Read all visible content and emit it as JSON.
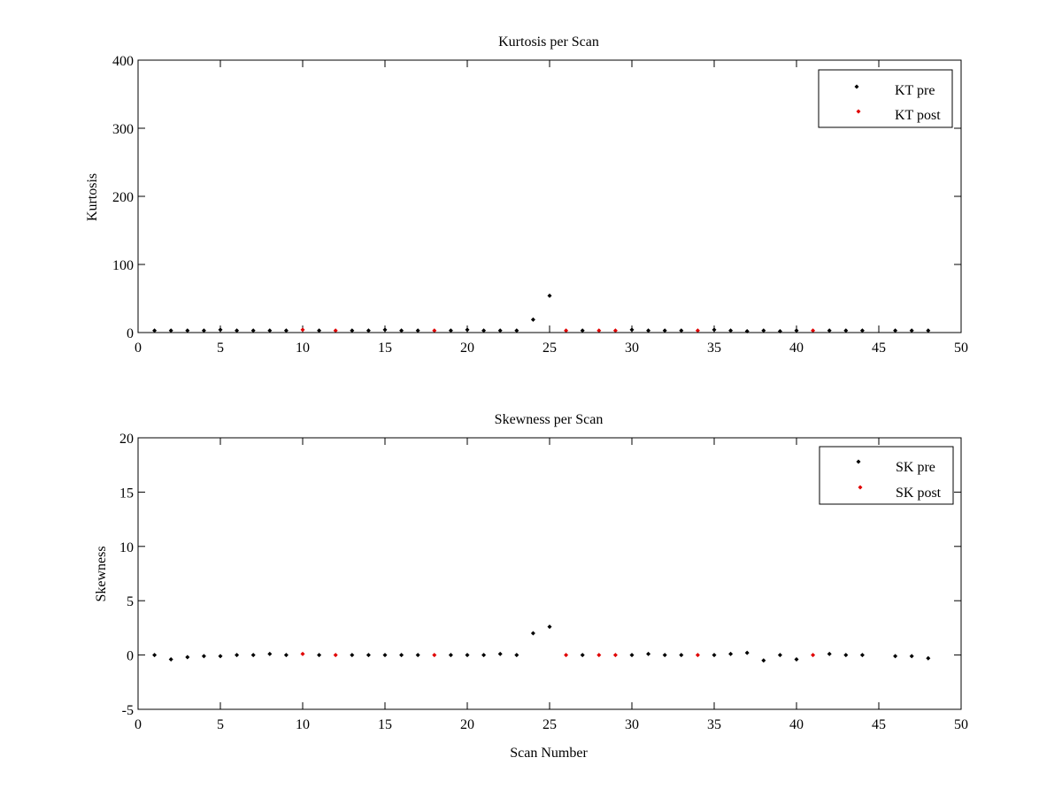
{
  "colors": {
    "pre": "#000000",
    "post": "#e00000",
    "background": "#ffffff"
  },
  "chart_data": [
    {
      "type": "scatter",
      "title": "Kurtosis per Scan",
      "xlabel": "",
      "ylabel": "Kurtosis",
      "xlim": [
        0,
        50
      ],
      "ylim": [
        0,
        400
      ],
      "xticks": [
        0,
        5,
        10,
        15,
        20,
        25,
        30,
        35,
        40,
        45,
        50
      ],
      "yticks": [
        0,
        100,
        200,
        300,
        400
      ],
      "grid": false,
      "legend_position": "top-right",
      "series": [
        {
          "name": "KT pre",
          "color": "#000000",
          "points": [
            [
              1,
              3
            ],
            [
              2,
              3
            ],
            [
              3,
              3
            ],
            [
              4,
              3
            ],
            [
              5,
              4
            ],
            [
              6,
              3
            ],
            [
              7,
              3
            ],
            [
              8,
              3
            ],
            [
              9,
              3
            ],
            [
              11,
              3
            ],
            [
              13,
              3
            ],
            [
              14,
              3
            ],
            [
              15,
              4
            ],
            [
              16,
              3
            ],
            [
              17,
              3
            ],
            [
              19,
              3
            ],
            [
              20,
              4
            ],
            [
              21,
              3
            ],
            [
              22,
              3
            ],
            [
              23,
              3
            ],
            [
              24,
              19
            ],
            [
              25,
              54
            ],
            [
              27,
              3
            ],
            [
              30,
              4
            ],
            [
              31,
              3
            ],
            [
              32,
              3
            ],
            [
              33,
              3
            ],
            [
              35,
              4
            ],
            [
              36,
              3
            ],
            [
              37,
              2
            ],
            [
              38,
              3
            ],
            [
              39,
              2
            ],
            [
              40,
              3
            ],
            [
              42,
              3
            ],
            [
              43,
              3
            ],
            [
              44,
              3
            ],
            [
              46,
              3
            ],
            [
              47,
              3
            ],
            [
              48,
              3
            ]
          ]
        },
        {
          "name": "KT post",
          "color": "#e00000",
          "points": [
            [
              10,
              4
            ],
            [
              12,
              3
            ],
            [
              18,
              3
            ],
            [
              26,
              3
            ],
            [
              28,
              3
            ],
            [
              29,
              3
            ],
            [
              34,
              3
            ],
            [
              41,
              3
            ]
          ]
        }
      ]
    },
    {
      "type": "scatter",
      "title": "Skewness per Scan",
      "xlabel": "Scan Number",
      "ylabel": "Skewness",
      "xlim": [
        0,
        50
      ],
      "ylim": [
        -5,
        20
      ],
      "xticks": [
        0,
        5,
        10,
        15,
        20,
        25,
        30,
        35,
        40,
        45,
        50
      ],
      "yticks": [
        -5,
        0,
        5,
        10,
        15,
        20
      ],
      "grid": false,
      "legend_position": "top-right",
      "series": [
        {
          "name": "SK pre",
          "color": "#000000",
          "points": [
            [
              1,
              0
            ],
            [
              2,
              -0.4
            ],
            [
              3,
              -0.2
            ],
            [
              4,
              -0.1
            ],
            [
              5,
              -0.1
            ],
            [
              6,
              0
            ],
            [
              7,
              0
            ],
            [
              8,
              0.1
            ],
            [
              9,
              0
            ],
            [
              11,
              0
            ],
            [
              13,
              0
            ],
            [
              14,
              0
            ],
            [
              15,
              0
            ],
            [
              16,
              0
            ],
            [
              17,
              0
            ],
            [
              19,
              0
            ],
            [
              20,
              0
            ],
            [
              21,
              0
            ],
            [
              22,
              0.1
            ],
            [
              23,
              0
            ],
            [
              24,
              2
            ],
            [
              25,
              2.6
            ],
            [
              27,
              0
            ],
            [
              30,
              0
            ],
            [
              31,
              0.1
            ],
            [
              32,
              0
            ],
            [
              33,
              0
            ],
            [
              35,
              0
            ],
            [
              36,
              0.1
            ],
            [
              37,
              0.2
            ],
            [
              38,
              -0.5
            ],
            [
              39,
              0
            ],
            [
              40,
              -0.4
            ],
            [
              42,
              0.1
            ],
            [
              43,
              0
            ],
            [
              44,
              0
            ],
            [
              46,
              -0.1
            ],
            [
              47,
              -0.1
            ],
            [
              48,
              -0.3
            ]
          ]
        },
        {
          "name": "SK post",
          "color": "#e00000",
          "points": [
            [
              10,
              0.1
            ],
            [
              12,
              0
            ],
            [
              18,
              0
            ],
            [
              26,
              0
            ],
            [
              28,
              0
            ],
            [
              29,
              0
            ],
            [
              34,
              0
            ],
            [
              41,
              0
            ]
          ]
        }
      ]
    }
  ]
}
